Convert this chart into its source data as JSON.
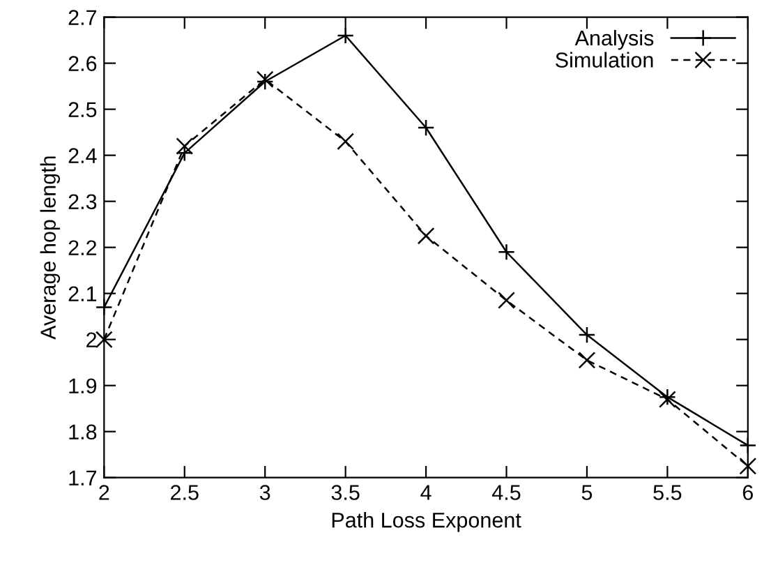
{
  "chart_data": {
    "type": "line",
    "xlabel": "Path Loss Exponent",
    "ylabel": "Average hop length",
    "x": [
      2,
      2.5,
      3,
      3.5,
      4,
      4.5,
      5,
      5.5,
      6
    ],
    "series": [
      {
        "name": "Analysis",
        "color": "#000000",
        "marker": "cross",
        "line_style": "solid",
        "values": [
          2.07,
          2.405,
          2.56,
          2.66,
          2.46,
          2.19,
          2.01,
          1.875,
          1.77
        ]
      },
      {
        "name": "Simulation",
        "color": "#000000",
        "marker": "x",
        "line_style": "dashed",
        "values": [
          2.0,
          2.42,
          2.565,
          2.43,
          2.225,
          2.085,
          1.955,
          1.87,
          1.725
        ]
      }
    ],
    "xlim": [
      2,
      6
    ],
    "xticks": [
      2,
      2.5,
      3,
      3.5,
      4,
      4.5,
      5,
      5.5,
      6
    ],
    "ylim": [
      1.7,
      2.7
    ],
    "yticks": [
      1.7,
      1.8,
      1.9,
      2,
      2.1,
      2.2,
      2.3,
      2.4,
      2.5,
      2.6,
      2.7
    ],
    "grid": false,
    "legend": "top right"
  }
}
